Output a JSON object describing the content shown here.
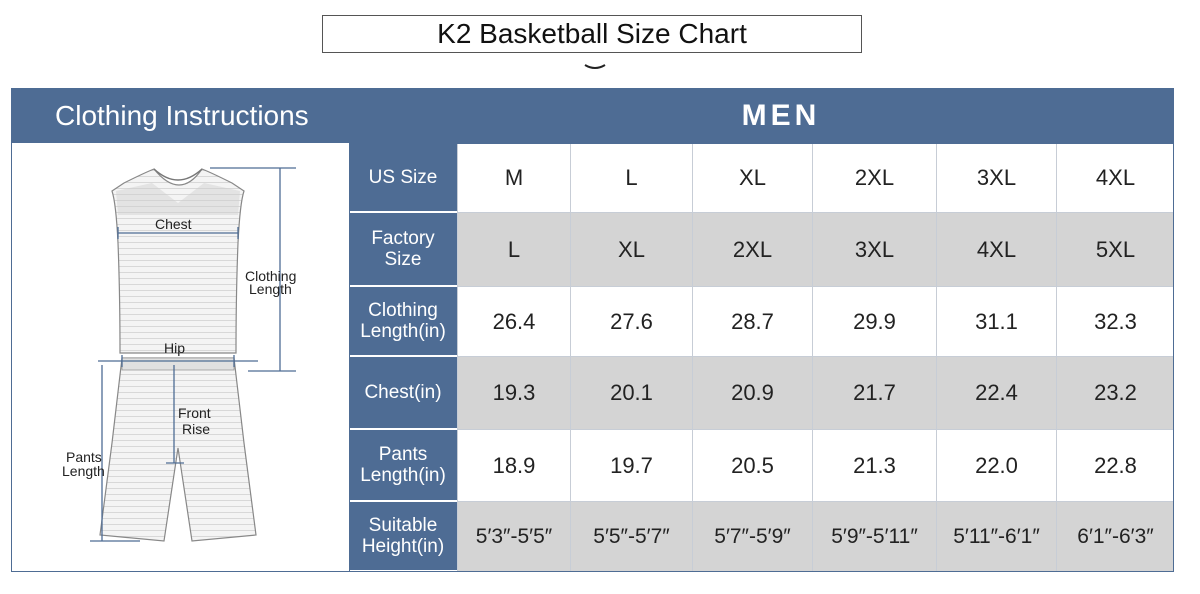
{
  "title": "K2 Basketball Size Chart",
  "header": {
    "left": "Clothing Instructions",
    "right": "MEN"
  },
  "illustration": {
    "chest": "Chest",
    "clothing_length": "Clothing\nLength",
    "hip": "Hip",
    "front_rise": "Front\nRise",
    "pants_length": "Pants\nLength"
  },
  "table": {
    "rows": [
      {
        "label": "US Size",
        "values": [
          "M",
          "L",
          "XL",
          "2XL",
          "3XL",
          "4XL"
        ]
      },
      {
        "label": "Factory\nSize",
        "values": [
          "L",
          "XL",
          "2XL",
          "3XL",
          "4XL",
          "5XL"
        ]
      },
      {
        "label": "Clothing\nLength(in)",
        "values": [
          "26.4",
          "27.6",
          "28.7",
          "29.9",
          "31.1",
          "32.3"
        ]
      },
      {
        "label": "Chest(in)",
        "values": [
          "19.3",
          "20.1",
          "20.9",
          "21.7",
          "22.4",
          "23.2"
        ]
      },
      {
        "label": "Pants\nLength(in)",
        "values": [
          "18.9",
          "19.7",
          "20.5",
          "21.3",
          "22.0",
          "22.8"
        ]
      },
      {
        "label": "Suitable\nHeight(in)",
        "values": [
          "5′3″-5′5″",
          "5′5″-5′7″",
          "5′7″-5′9″",
          "5′9″-5′11″",
          "5′11″-6′1″",
          "6′1″-6′3″"
        ]
      }
    ]
  },
  "colors": {
    "header_blue": "#4e6c94",
    "row_gray": "#d4d4d4",
    "row_white": "#ffffff"
  }
}
